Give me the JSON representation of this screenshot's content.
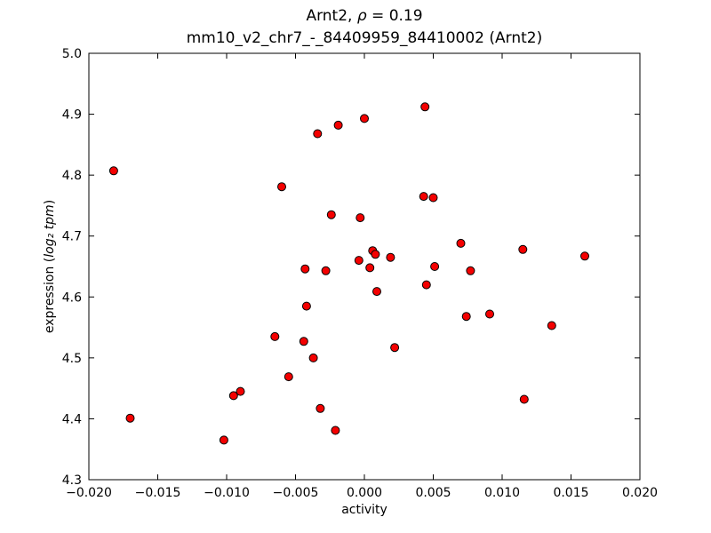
{
  "figure": {
    "title_prefix": "Arnt2, ",
    "title_rho": "ρ",
    "title_eq": " = 0.19",
    "subtitle": "mm10_v2_chr7_-_84409959_84410002 (Arnt2)",
    "xlabel": "activity",
    "ylabel_prefix": "expression (",
    "ylabel_math": "log₂ tpm",
    "ylabel_suffix": ")"
  },
  "chart_data": {
    "type": "scatter",
    "title": "Arnt2, ρ = 0.19",
    "subtitle": "mm10_v2_chr7_-_84409959_84410002 (Arnt2)",
    "xlabel": "activity",
    "ylabel": "expression (log2 tpm)",
    "xlim": [
      -0.02,
      0.02
    ],
    "ylim": [
      4.3,
      5.0
    ],
    "grid": false,
    "legend": false,
    "xtick_values": [
      -0.02,
      -0.015,
      -0.01,
      -0.005,
      0.0,
      0.005,
      0.01,
      0.015,
      0.02
    ],
    "xtick_labels": [
      "−0.020",
      "−0.015",
      "−0.010",
      "−0.005",
      "0.000",
      "0.005",
      "0.010",
      "0.015",
      "0.020"
    ],
    "ytick_values": [
      4.3,
      4.4,
      4.5,
      4.6,
      4.7,
      4.8,
      4.9,
      5.0
    ],
    "ytick_labels": [
      "4.3",
      "4.4",
      "4.5",
      "4.6",
      "4.7",
      "4.8",
      "4.9",
      "5.0"
    ],
    "marker": {
      "shape": "circle",
      "fill": "#f40000",
      "edge": "#000000",
      "radius": 4.5
    },
    "points": [
      [
        -0.0182,
        4.807
      ],
      [
        -0.017,
        4.401
      ],
      [
        -0.0102,
        4.365
      ],
      [
        -0.0095,
        4.438
      ],
      [
        -0.009,
        4.445
      ],
      [
        -0.0065,
        4.535
      ],
      [
        -0.006,
        4.781
      ],
      [
        -0.0055,
        4.469
      ],
      [
        -0.0044,
        4.527
      ],
      [
        -0.0043,
        4.646
      ],
      [
        -0.0042,
        4.585
      ],
      [
        -0.0037,
        4.5
      ],
      [
        -0.0034,
        4.868
      ],
      [
        -0.0032,
        4.417
      ],
      [
        -0.0028,
        4.643
      ],
      [
        -0.0024,
        4.735
      ],
      [
        -0.0021,
        4.381
      ],
      [
        -0.0019,
        4.882
      ],
      [
        -0.0004,
        4.66
      ],
      [
        -0.0003,
        4.73
      ],
      [
        0.0,
        4.893
      ],
      [
        0.0004,
        4.648
      ],
      [
        0.0006,
        4.676
      ],
      [
        0.0008,
        4.67
      ],
      [
        0.0009,
        4.609
      ],
      [
        0.0019,
        4.665
      ],
      [
        0.0022,
        4.517
      ],
      [
        0.0043,
        4.765
      ],
      [
        0.0044,
        4.912
      ],
      [
        0.0045,
        4.62
      ],
      [
        0.005,
        4.763
      ],
      [
        0.0051,
        4.65
      ],
      [
        0.007,
        4.688
      ],
      [
        0.0074,
        4.568
      ],
      [
        0.0077,
        4.643
      ],
      [
        0.0091,
        4.572
      ],
      [
        0.0115,
        4.678
      ],
      [
        0.0116,
        4.432
      ],
      [
        0.0136,
        4.553
      ],
      [
        0.016,
        4.667
      ]
    ]
  }
}
